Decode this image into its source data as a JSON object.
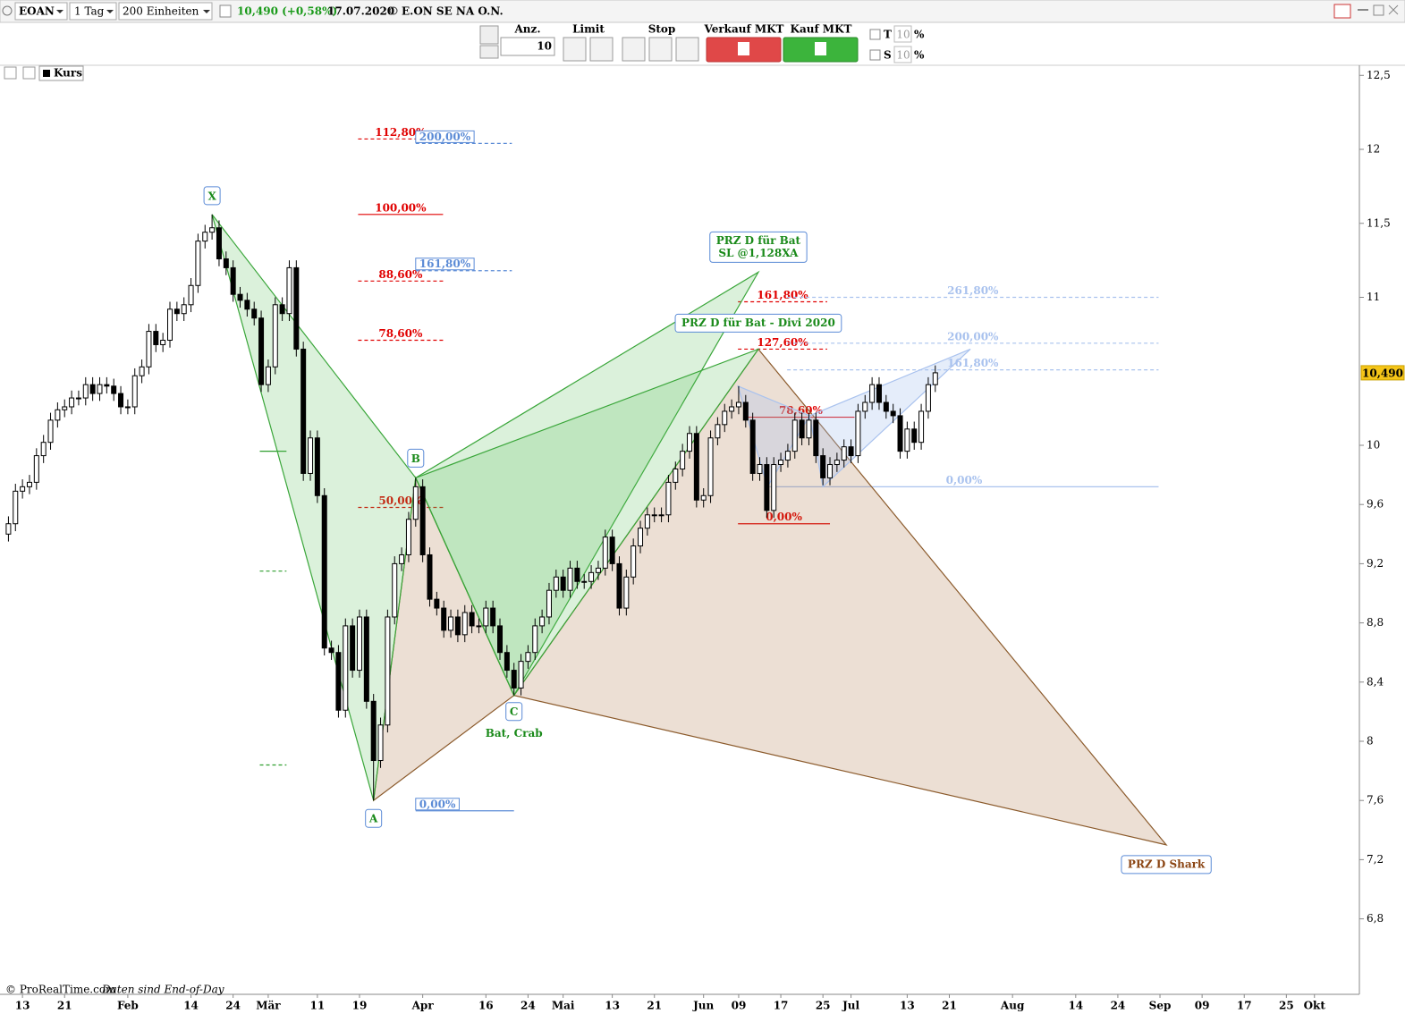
{
  "toolbar": {
    "symbol": "EOAN",
    "interval": "1 Tag",
    "units": "200 Einheiten",
    "price": "10,490 (+0,58%)",
    "date": "17.07.2020",
    "name": "E.ON SE NA O.N.",
    "qty_label": "Anz.",
    "qty": "10",
    "limit": "Limit",
    "stop": "Stop",
    "sell": "Verkauf MKT",
    "buy": "Kauf MKT",
    "t_label": "T",
    "t_value": "10",
    "t_unit": "%",
    "s_label": "S",
    "s_value": "10",
    "s_unit": "%"
  },
  "footer": {
    "copyright": "© ProRealTime.com",
    "note": "Daten sind End-of-Day"
  },
  "chart_data": {
    "type": "candlestick",
    "legend": "Kurs",
    "up_color": "#ffffff",
    "down_color": "#000000",
    "edge_color": "#000000",
    "xlim": [
      -3.2,
      190.4
    ],
    "ylim": [
      6.29,
      12.556
    ],
    "xticks": [
      {
        "value": 0,
        "label": "13"
      },
      {
        "value": 6,
        "label": "21"
      },
      {
        "value": 15,
        "label": "Feb"
      },
      {
        "value": 24,
        "label": "14"
      },
      {
        "value": 30,
        "label": "24"
      },
      {
        "value": 35,
        "label": "Mär"
      },
      {
        "value": 42,
        "label": "11"
      },
      {
        "value": 48,
        "label": "19"
      },
      {
        "value": 57,
        "label": "Apr"
      },
      {
        "value": 66,
        "label": "16"
      },
      {
        "value": 72,
        "label": "24"
      },
      {
        "value": 77,
        "label": "Mai"
      },
      {
        "value": 84,
        "label": "13"
      },
      {
        "value": 90,
        "label": "21"
      },
      {
        "value": 97,
        "label": "Jun"
      },
      {
        "value": 102,
        "label": "09"
      },
      {
        "value": 108,
        "label": "17"
      },
      {
        "value": 114,
        "label": "25"
      },
      {
        "value": 118,
        "label": "Jul"
      },
      {
        "value": 126,
        "label": "13"
      },
      {
        "value": 132,
        "label": "21"
      },
      {
        "value": 141,
        "label": "Aug"
      },
      {
        "value": 150,
        "label": "14"
      },
      {
        "value": 156,
        "label": "24"
      },
      {
        "value": 162,
        "label": "Sep"
      },
      {
        "value": 168,
        "label": "09"
      },
      {
        "value": 174,
        "label": "17"
      },
      {
        "value": 180,
        "label": "25"
      },
      {
        "value": 184,
        "label": "Okt"
      }
    ],
    "yticks": [
      {
        "value": 12.5,
        "label": "12,5"
      },
      12,
      {
        "value": 11.5,
        "label": "11,5"
      },
      11,
      10,
      {
        "value": 9.6,
        "label": "9,6"
      },
      {
        "value": 9.2,
        "label": "9,2"
      },
      {
        "value": 8.8,
        "label": "8,8"
      },
      {
        "value": 8.4,
        "label": "8,4"
      },
      8,
      {
        "value": 7.6,
        "label": "7,6"
      },
      {
        "value": 7.2,
        "label": "7,2"
      },
      {
        "value": 6.8,
        "label": "6,8"
      }
    ],
    "last_price": {
      "value": 10.49,
      "label": "10,490"
    },
    "x": [
      -2,
      -1,
      0,
      1,
      2,
      3,
      4,
      5,
      6,
      7,
      8,
      9,
      10,
      11,
      12,
      13,
      14,
      15,
      16,
      17,
      18,
      19,
      20,
      21,
      22,
      23,
      24,
      25,
      26,
      27,
      28,
      29,
      30,
      31,
      32,
      33,
      34,
      35,
      36,
      37,
      38,
      39,
      40,
      41,
      42,
      43,
      44,
      45,
      46,
      47,
      48,
      49,
      50,
      51,
      52,
      53,
      54,
      55,
      56,
      57,
      58,
      59,
      60,
      61,
      62,
      63,
      64,
      65,
      66,
      67,
      68,
      69,
      70,
      71,
      72,
      73,
      74,
      75,
      76,
      77,
      78,
      79,
      80,
      81,
      82,
      83,
      84,
      85,
      86,
      87,
      88,
      89,
      90,
      91,
      92,
      93,
      94,
      95,
      96,
      97,
      98,
      99,
      100,
      101,
      102,
      103,
      104,
      105,
      106,
      107,
      108,
      109,
      110,
      111,
      112,
      113,
      114,
      115,
      116,
      117,
      118,
      119,
      120,
      121,
      122,
      123,
      124,
      125,
      126,
      127,
      128,
      129,
      130
    ],
    "open": [
      9.4,
      9.47,
      9.69,
      9.72,
      9.75,
      9.93,
      10.02,
      10.17,
      10.24,
      10.26,
      10.32,
      10.32,
      10.41,
      10.35,
      10.41,
      10.4,
      10.35,
      10.26,
      10.26,
      10.47,
      10.53,
      10.77,
      10.68,
      10.71,
      10.92,
      10.89,
      10.95,
      11.08,
      11.38,
      11.44,
      11.47,
      11.26,
      11.2,
      11.02,
      10.98,
      10.92,
      10.86,
      10.41,
      10.53,
      10.95,
      10.89,
      11.2,
      10.65,
      9.81,
      10.05,
      9.66,
      8.63,
      8.6,
      8.21,
      8.78,
      8.48,
      8.84,
      8.27,
      7.87,
      8.11,
      8.84,
      9.2,
      9.26,
      9.5,
      9.72,
      9.26,
      8.96,
      8.9,
      8.75,
      8.84,
      8.72,
      8.87,
      8.78,
      8.78,
      8.9,
      8.78,
      8.6,
      8.48,
      8.36,
      8.54,
      8.6,
      8.78,
      8.84,
      9.02,
      9.11,
      9.02,
      9.17,
      9.08,
      9.08,
      9.14,
      9.17,
      9.38,
      9.2,
      8.9,
      9.11,
      9.32,
      9.44,
      9.53,
      9.53,
      9.53,
      9.75,
      9.84,
      9.96,
      10.08,
      9.63,
      9.66,
      10.05,
      10.14,
      10.23,
      10.26,
      10.29,
      10.17,
      9.81,
      9.87,
      9.56,
      9.87,
      9.9,
      9.96,
      10.17,
      10.05,
      10.17,
      9.93,
      9.78,
      9.87,
      9.9,
      9.99,
      9.93,
      10.23,
      10.29,
      10.41,
      10.29,
      10.23,
      10.2,
      9.96,
      10.11,
      10.02,
      10.23,
      10.41
    ],
    "high": [
      9.52,
      9.74,
      9.77,
      9.8,
      9.98,
      10.07,
      10.22,
      10.29,
      10.31,
      10.37,
      10.37,
      10.46,
      10.46,
      10.46,
      10.46,
      10.45,
      10.4,
      10.31,
      10.52,
      10.58,
      10.82,
      10.82,
      10.76,
      10.97,
      10.97,
      11.0,
      11.13,
      11.43,
      11.49,
      11.56,
      11.52,
      11.31,
      11.25,
      11.07,
      11.03,
      10.97,
      10.91,
      10.58,
      11.0,
      11.0,
      11.25,
      11.25,
      10.7,
      10.1,
      10.1,
      9.71,
      8.68,
      8.65,
      8.83,
      8.83,
      8.89,
      8.89,
      8.32,
      8.16,
      8.89,
      9.25,
      9.31,
      9.55,
      9.78,
      9.77,
      9.31,
      9.01,
      8.95,
      8.89,
      8.89,
      8.92,
      8.92,
      8.83,
      8.95,
      8.95,
      8.83,
      8.65,
      8.53,
      8.59,
      8.65,
      8.83,
      8.89,
      9.07,
      9.16,
      9.16,
      9.22,
      9.22,
      9.13,
      9.19,
      9.22,
      9.43,
      9.43,
      9.25,
      9.16,
      9.37,
      9.49,
      9.58,
      9.58,
      9.58,
      9.8,
      9.89,
      10.01,
      10.13,
      10.13,
      9.71,
      10.1,
      10.19,
      10.28,
      10.31,
      10.4,
      10.34,
      10.22,
      9.92,
      9.92,
      9.92,
      9.95,
      10.01,
      10.22,
      10.22,
      10.22,
      10.22,
      9.98,
      9.92,
      9.95,
      10.04,
      10.04,
      10.28,
      10.34,
      10.46,
      10.46,
      10.34,
      10.28,
      10.25,
      10.16,
      10.16,
      10.28,
      10.46,
      10.54
    ],
    "low": [
      9.35,
      9.42,
      9.64,
      9.67,
      9.7,
      9.88,
      9.97,
      10.12,
      10.19,
      10.21,
      10.27,
      10.27,
      10.3,
      10.3,
      10.35,
      10.3,
      10.21,
      10.21,
      10.21,
      10.42,
      10.48,
      10.63,
      10.63,
      10.66,
      10.84,
      10.84,
      10.9,
      11.03,
      11.33,
      11.39,
      11.21,
      11.15,
      10.97,
      10.93,
      10.87,
      10.81,
      10.36,
      10.36,
      10.48,
      10.84,
      10.84,
      10.6,
      9.76,
      9.76,
      9.61,
      8.58,
      8.55,
      8.16,
      8.16,
      8.43,
      8.43,
      8.22,
      7.6,
      7.82,
      8.06,
      8.79,
      9.15,
      9.21,
      9.45,
      9.21,
      8.91,
      8.85,
      8.7,
      8.7,
      8.67,
      8.67,
      8.73,
      8.73,
      8.73,
      8.73,
      8.55,
      8.43,
      8.31,
      8.31,
      8.49,
      8.55,
      8.73,
      8.79,
      8.97,
      8.97,
      8.97,
      9.03,
      9.03,
      9.03,
      9.09,
      9.12,
      9.15,
      8.85,
      8.85,
      9.06,
      9.27,
      9.39,
      9.48,
      9.48,
      9.48,
      9.7,
      9.79,
      9.91,
      9.58,
      9.58,
      9.61,
      10.0,
      10.09,
      10.18,
      10.21,
      10.12,
      9.76,
      9.76,
      9.51,
      9.51,
      9.82,
      9.85,
      9.91,
      10.0,
      10.0,
      9.88,
      9.73,
      9.73,
      9.82,
      9.85,
      9.88,
      9.88,
      10.18,
      10.24,
      10.24,
      10.18,
      10.15,
      9.91,
      9.91,
      9.97,
      9.97,
      10.18,
      10.36
    ],
    "close": [
      9.47,
      9.69,
      9.72,
      9.75,
      9.93,
      10.02,
      10.17,
      10.24,
      10.26,
      10.32,
      10.32,
      10.41,
      10.35,
      10.41,
      10.4,
      10.35,
      10.26,
      10.26,
      10.47,
      10.53,
      10.77,
      10.68,
      10.71,
      10.92,
      10.89,
      10.95,
      11.08,
      11.38,
      11.44,
      11.47,
      11.26,
      11.2,
      11.02,
      10.98,
      10.92,
      10.86,
      10.41,
      10.53,
      10.95,
      10.89,
      11.2,
      10.65,
      9.81,
      10.05,
      9.66,
      8.63,
      8.6,
      8.21,
      8.78,
      8.48,
      8.84,
      8.27,
      7.87,
      8.11,
      8.84,
      9.2,
      9.26,
      9.5,
      9.72,
      9.26,
      8.96,
      8.9,
      8.75,
      8.84,
      8.72,
      8.87,
      8.78,
      8.78,
      8.9,
      8.78,
      8.6,
      8.48,
      8.36,
      8.54,
      8.6,
      8.78,
      8.84,
      9.02,
      9.11,
      9.02,
      9.17,
      9.08,
      9.08,
      9.14,
      9.17,
      9.38,
      9.2,
      8.9,
      9.11,
      9.32,
      9.44,
      9.53,
      9.53,
      9.53,
      9.75,
      9.84,
      9.96,
      10.08,
      9.63,
      9.66,
      10.05,
      10.14,
      10.23,
      10.26,
      10.29,
      10.17,
      9.81,
      9.87,
      9.56,
      9.87,
      9.9,
      9.96,
      10.17,
      10.05,
      10.17,
      9.93,
      9.78,
      9.87,
      9.9,
      9.99,
      9.93,
      10.23,
      10.29,
      10.41,
      10.29,
      10.23,
      10.2,
      9.96,
      10.11,
      10.02,
      10.23,
      10.41,
      10.49
    ],
    "levels": [
      {
        "price": 12.07,
        "text": "112,80%",
        "from": 47.8,
        "to": 59.9,
        "color": "#e00000",
        "dash": true
      },
      {
        "price": 11.56,
        "text": "100,00%",
        "from": 47.8,
        "to": 59.9,
        "color": "#e00000",
        "dash": false
      },
      {
        "price": 11.11,
        "text": "88,60%",
        "from": 47.8,
        "to": 59.9,
        "color": "#e00000",
        "dash": true
      },
      {
        "price": 10.71,
        "text": "78,60%",
        "from": 47.8,
        "to": 59.9,
        "color": "#e00000",
        "dash": true
      },
      {
        "price": 9.58,
        "text": "50,00%",
        "from": 47.8,
        "to": 59.9,
        "color": "#e00000",
        "dash": true
      },
      {
        "price": 12.04,
        "text": "200,00%",
        "from": 56,
        "to": 69.7,
        "color": "#5b8bd6",
        "dash": true,
        "boxed": true
      },
      {
        "price": 11.18,
        "text": "161,80%",
        "from": 56,
        "to": 69.7,
        "color": "#5b8bd6",
        "dash": true,
        "boxed": true
      },
      {
        "price": 7.53,
        "text": "0,00%",
        "from": 56,
        "to": 70,
        "color": "#5b8bd6",
        "dash": false,
        "boxed": true
      },
      {
        "price": 9.96,
        "from": 33.8,
        "to": 37.6,
        "color": "#2e9e2e",
        "dash": false
      },
      {
        "price": 9.15,
        "from": 33.8,
        "to": 37.6,
        "color": "#2e9e2e",
        "dash": true
      },
      {
        "price": 7.84,
        "from": 33.8,
        "to": 37.6,
        "color": "#2e9e2e",
        "dash": true
      },
      {
        "price": 10.97,
        "text": "161,80%",
        "from": 101.9,
        "to": 114.6,
        "color": "#e00000",
        "dash": true
      },
      {
        "price": 10.65,
        "text": "127,60%",
        "from": 101.9,
        "to": 114.6,
        "color": "#e00000",
        "dash": true
      },
      {
        "price": 10.19,
        "text": "78,60%",
        "from": 103.2,
        "to": 118.5,
        "color": "#e00000",
        "dash": false
      },
      {
        "price": 9.47,
        "text": "0,00%",
        "from": 101.9,
        "to": 115,
        "color": "#e00000",
        "dash": false
      },
      {
        "price": 11.0,
        "text": "261,80%",
        "from": 108.9,
        "to": 161.8,
        "color": "#a9c2ee",
        "dash": true
      },
      {
        "price": 10.69,
        "text": "200,00%",
        "from": 108.9,
        "to": 161.8,
        "color": "#a9c2ee",
        "dash": true
      },
      {
        "price": 10.51,
        "text": "161,80%",
        "from": 108.9,
        "to": 161.8,
        "color": "#a9c2ee",
        "dash": true
      },
      {
        "price": 9.72,
        "text": "0,00%",
        "from": 106.4,
        "to": 161.8,
        "color": "#a9c2ee",
        "dash": false
      }
    ],
    "points": [
      {
        "label": "X",
        "x": 27,
        "price": 11.56
      },
      {
        "label": "A",
        "x": 50,
        "price": 7.6
      },
      {
        "label": "B",
        "x": 56,
        "price": 9.78
      },
      {
        "label": "C",
        "x": 70,
        "price": 8.31
      },
      {
        "x": 104.8,
        "price": 11.17
      },
      {
        "x": 104.8,
        "price": 10.65
      },
      {
        "x": 162.9,
        "price": 7.3
      },
      {
        "x": 101.9,
        "price": 10.4
      },
      {
        "x": 106.1,
        "price": 9.72
      },
      {
        "x": 112.1,
        "price": 10.2
      },
      {
        "x": 114,
        "price": 9.72
      },
      {
        "x": 135,
        "price": 10.65
      }
    ],
    "shapes": [
      {
        "points": [
          1,
          2,
          3
        ],
        "stroke": "#8b5a2b",
        "fill": "rgba(170,110,60,0.22)"
      },
      {
        "points": [
          3,
          5,
          6
        ],
        "stroke": "#8b5a2b",
        "fill": "rgba(170,110,60,0.22)"
      },
      {
        "points": [
          0,
          1,
          2
        ],
        "stroke": "#3aa63a",
        "fill": "rgba(90,190,90,0.22)"
      },
      {
        "points": [
          2,
          3,
          4
        ],
        "stroke": "#3aa63a",
        "fill": "rgba(90,190,90,0.22)"
      },
      {
        "points": [
          2,
          3,
          5
        ],
        "stroke": "#3aa63a",
        "fill": "rgba(90,190,90,0.22)"
      },
      {
        "points": [
          7,
          8,
          9
        ],
        "stroke": "#a9c2ee",
        "fill": "rgba(170,195,240,0.3)"
      },
      {
        "points": [
          9,
          10,
          11
        ],
        "stroke": "#a9c2ee",
        "fill": "rgba(170,195,240,0.3)"
      }
    ],
    "annotations": [
      {
        "text": [
          "PRZ D für Bat",
          "SL @1,128XA"
        ],
        "point": 4,
        "color": "#1a8a1a",
        "boxed": true
      },
      {
        "text": [
          "PRZ D für Bat - Divi 2020"
        ],
        "point": 5,
        "color": "#1a8a1a",
        "boxed": true
      },
      {
        "text": [
          "Bat, Crab"
        ],
        "point": 3,
        "color": "#1a8a1a",
        "boxed": false
      },
      {
        "text": [
          "PRZ D Shark"
        ],
        "point": 6,
        "color": "#8b4513",
        "boxed": true
      }
    ]
  }
}
